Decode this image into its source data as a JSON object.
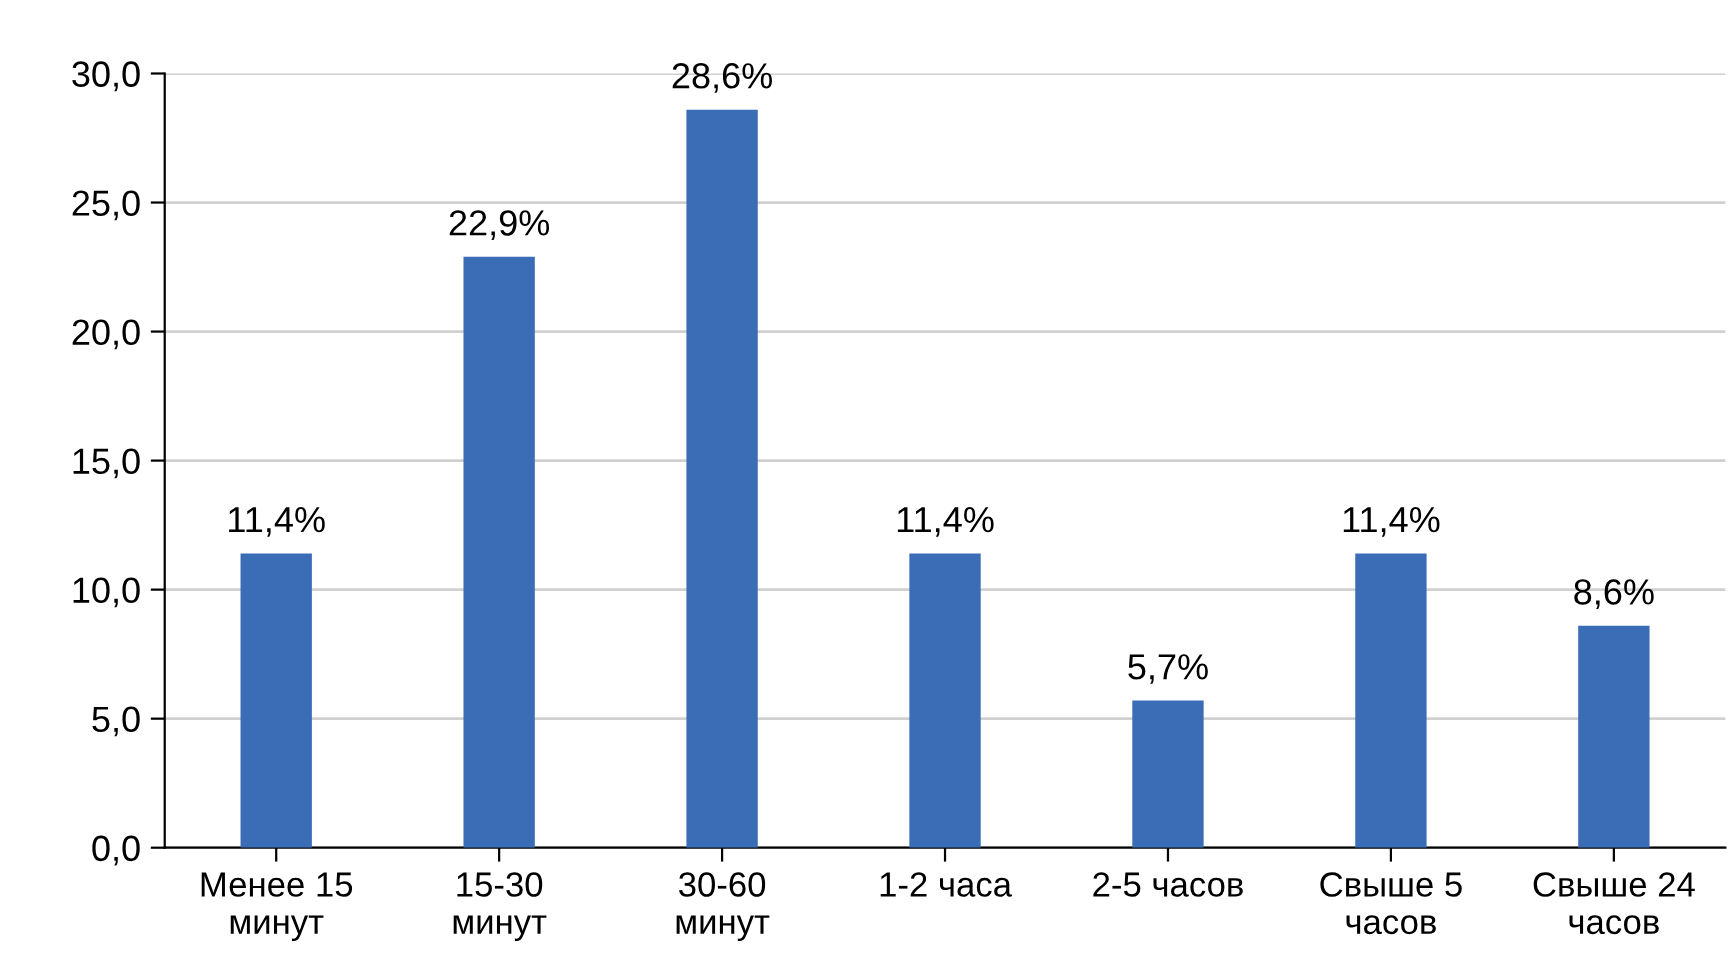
{
  "chart_data": {
    "type": "bar",
    "categories": [
      "Менее 15\nминут",
      "15-30\nминут",
      "30-60\nминут",
      "1-2 часа",
      "2-5 часов",
      "Свыше 5\nчасов",
      "Свыше 24\nчасов"
    ],
    "values": [
      11.4,
      22.9,
      28.6,
      11.4,
      5.7,
      11.4,
      8.6
    ],
    "value_labels": [
      "11,4%",
      "22,9%",
      "28,6%",
      "11,4%",
      "5,7%",
      "11,4%",
      "8,6%"
    ],
    "color": "#3a6db5",
    "ylim": [
      0,
      30
    ],
    "yticks": [
      {
        "value": 0,
        "label": "0,0"
      },
      {
        "value": 5,
        "label": "5,0"
      },
      {
        "value": 10,
        "label": "10,0"
      },
      {
        "value": 15,
        "label": "15,0"
      },
      {
        "value": 20,
        "label": "20,0"
      },
      {
        "value": 25,
        "label": "25,0"
      },
      {
        "value": 30,
        "label": "30,0"
      }
    ],
    "grid": "y",
    "legend": false
  }
}
